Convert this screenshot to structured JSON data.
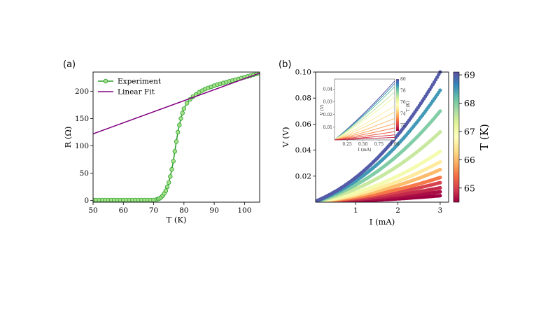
{
  "panel_a": {
    "label": "(a)"
  },
  "panel_b": {
    "label": "(b)"
  },
  "colorbar": {
    "label": "T (K)",
    "ticks": [
      65,
      66,
      67,
      68,
      69
    ],
    "range": [
      64.5,
      69.1
    ]
  },
  "inset": {
    "xlabel": "I (mA)",
    "ylabel": "V (V)",
    "cbar_label": "T (K)",
    "xticks": [
      0.25,
      0.5,
      0.75,
      1.0
    ],
    "yticks": [
      0.01,
      0.02,
      0.03,
      0.04
    ],
    "xlim": [
      0.05,
      1.0
    ],
    "ylim": [
      0,
      0.048
    ],
    "cbar_ticks": [
      72,
      74,
      76,
      78,
      80
    ],
    "cbar_range": [
      71,
      80
    ]
  },
  "colors": {
    "experiment_line": "#2ca02c",
    "experiment_fill": "#a6e08a",
    "fit_line": "#800080"
  },
  "chart_data": [
    {
      "type": "line",
      "title": "",
      "xlabel": "T (K)",
      "ylabel": "R (Ω)",
      "xlim": [
        50,
        105
      ],
      "ylim": [
        -3,
        235
      ],
      "xticks": [
        50,
        60,
        70,
        80,
        90,
        100
      ],
      "yticks": [
        0,
        50,
        100,
        150,
        200
      ],
      "legend": {
        "position": "top-left",
        "entries": [
          "Experiment",
          "Linear Fit"
        ]
      },
      "series": [
        {
          "name": "Experiment",
          "x": [
            50,
            51,
            52,
            53,
            54,
            55,
            56,
            57,
            58,
            59,
            60,
            61,
            62,
            63,
            64,
            65,
            66,
            67,
            68,
            69,
            70,
            71,
            71.5,
            72,
            72.5,
            73,
            73.5,
            74,
            74.5,
            75,
            75.5,
            76,
            76.5,
            77,
            77.5,
            78,
            78.5,
            79,
            79.5,
            80,
            81,
            82,
            83,
            84,
            85,
            86,
            87,
            88,
            89,
            90,
            91,
            92,
            93,
            94,
            95,
            96,
            97,
            98,
            99,
            100,
            101,
            102,
            103,
            104,
            105
          ],
          "y": [
            1,
            1,
            1,
            1,
            1,
            1,
            1,
            1,
            1,
            1,
            1,
            1,
            1,
            1,
            1,
            1,
            1,
            1,
            1,
            1,
            1,
            2,
            3,
            4,
            6,
            9,
            13,
            18,
            25,
            33,
            44,
            57,
            72,
            90,
            108,
            125,
            138,
            150,
            160,
            168,
            178,
            185,
            190,
            194,
            198,
            201,
            204,
            206,
            208,
            210,
            212,
            213.5,
            215,
            216.5,
            218,
            219.5,
            221,
            222.5,
            224,
            225.5,
            227,
            228.5,
            230,
            231.5,
            233
          ]
        },
        {
          "name": "Linear Fit",
          "x": [
            50,
            105
          ],
          "y": [
            122,
            233
          ]
        }
      ]
    },
    {
      "type": "scatter",
      "title": "",
      "xlabel": "I (mA)",
      "ylabel": "V (V)",
      "xlim": [
        0.05,
        3.2
      ],
      "ylim": [
        0,
        0.1
      ],
      "xticks": [
        1,
        2,
        3
      ],
      "yticks": [
        0.02,
        0.04,
        0.06,
        0.08,
        0.1
      ],
      "series": [
        {
          "name": "69.0 K",
          "T": 69.0,
          "v_end": 0.1
        },
        {
          "name": "68.5 K",
          "T": 68.5,
          "v_end": 0.086
        },
        {
          "name": "68.0 K",
          "T": 68.0,
          "v_end": 0.07
        },
        {
          "name": "67.5 K",
          "T": 67.5,
          "v_end": 0.054
        },
        {
          "name": "67.0 K",
          "T": 67.0,
          "v_end": 0.039
        },
        {
          "name": "66.5 K",
          "T": 66.5,
          "v_end": 0.031
        },
        {
          "name": "66.0 K",
          "T": 66.0,
          "v_end": 0.025
        },
        {
          "name": "65.5 K",
          "T": 65.5,
          "v_end": 0.019
        },
        {
          "name": "65.0 K",
          "T": 65.0,
          "v_end": 0.015
        },
        {
          "name": "64.8 K",
          "T": 64.8,
          "v_end": 0.011
        },
        {
          "name": "64.6 K",
          "T": 64.6,
          "v_end": 0.008
        },
        {
          "name": "64.5 K",
          "T": 64.5,
          "v_end": 0.005
        }
      ]
    },
    {
      "type": "line",
      "title": "inset",
      "xlabel": "I (mA)",
      "ylabel": "V (V)",
      "series": [
        {
          "name": "80 K",
          "T": 80,
          "v_at_1mA": 0.0465
        },
        {
          "name": "79 K",
          "T": 79,
          "v_at_1mA": 0.0445
        },
        {
          "name": "78 K",
          "T": 78,
          "v_at_1mA": 0.042
        },
        {
          "name": "77 K",
          "T": 77,
          "v_at_1mA": 0.038
        },
        {
          "name": "76 K",
          "T": 76,
          "v_at_1mA": 0.034
        },
        {
          "name": "75 K",
          "T": 75,
          "v_at_1mA": 0.027
        },
        {
          "name": "74.5 K",
          "T": 74.5,
          "v_at_1mA": 0.022
        },
        {
          "name": "74 K",
          "T": 74,
          "v_at_1mA": 0.017
        },
        {
          "name": "73.5 K",
          "T": 73.5,
          "v_at_1mA": 0.013
        },
        {
          "name": "73 K",
          "T": 73,
          "v_at_1mA": 0.0095
        },
        {
          "name": "72.5 K",
          "T": 72.5,
          "v_at_1mA": 0.0065
        },
        {
          "name": "72 K",
          "T": 72,
          "v_at_1mA": 0.004
        },
        {
          "name": "71.5 K",
          "T": 71.5,
          "v_at_1mA": 0.002
        }
      ]
    }
  ]
}
